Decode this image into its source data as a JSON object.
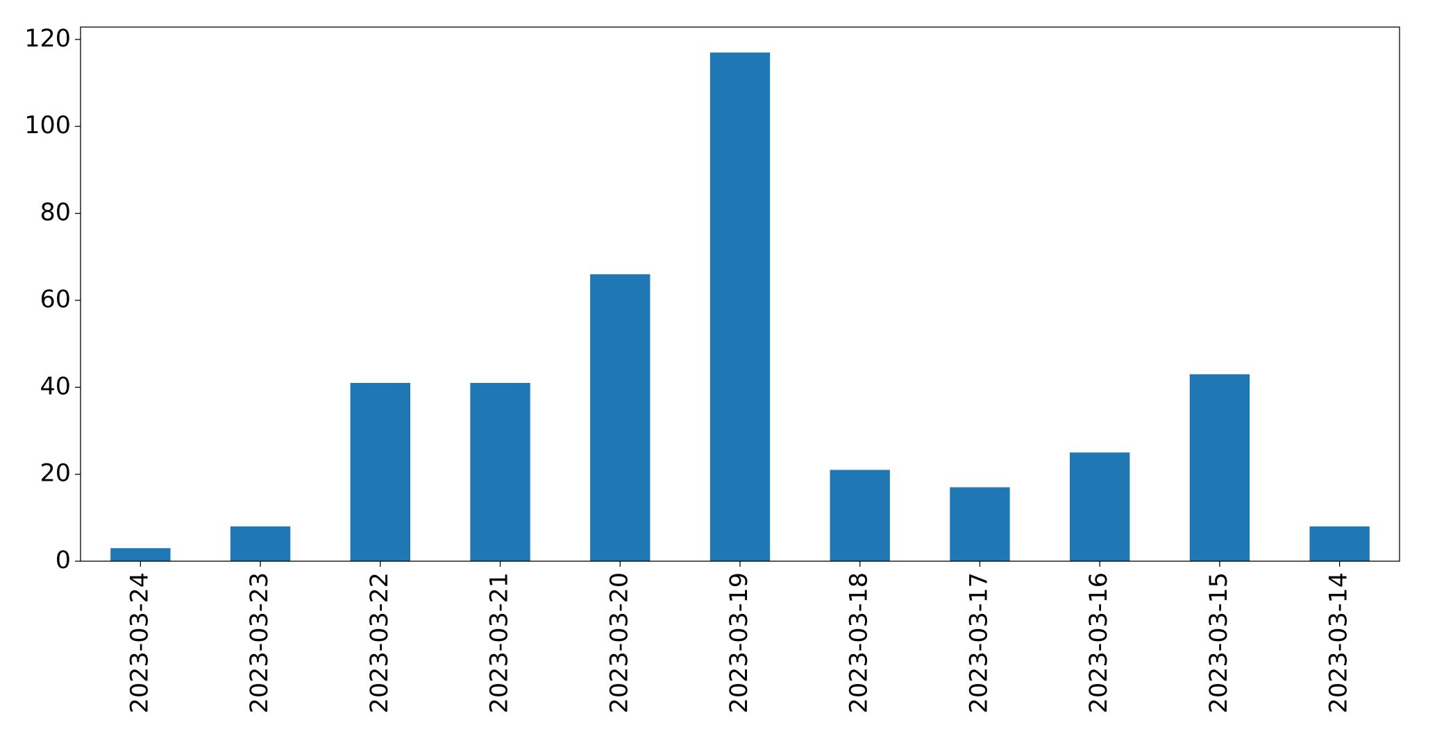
{
  "chart_data": {
    "type": "bar",
    "categories": [
      "2023-03-24",
      "2023-03-23",
      "2023-03-22",
      "2023-03-21",
      "2023-03-20",
      "2023-03-19",
      "2023-03-18",
      "2023-03-17",
      "2023-03-16",
      "2023-03-15",
      "2023-03-14"
    ],
    "values": [
      3,
      8,
      41,
      41,
      66,
      117,
      21,
      17,
      25,
      43,
      8
    ],
    "color": "#1f77b4",
    "ylim": [
      0,
      122.85
    ],
    "yticks": [
      0,
      20,
      40,
      60,
      80,
      100,
      120
    ],
    "grid": false
  }
}
